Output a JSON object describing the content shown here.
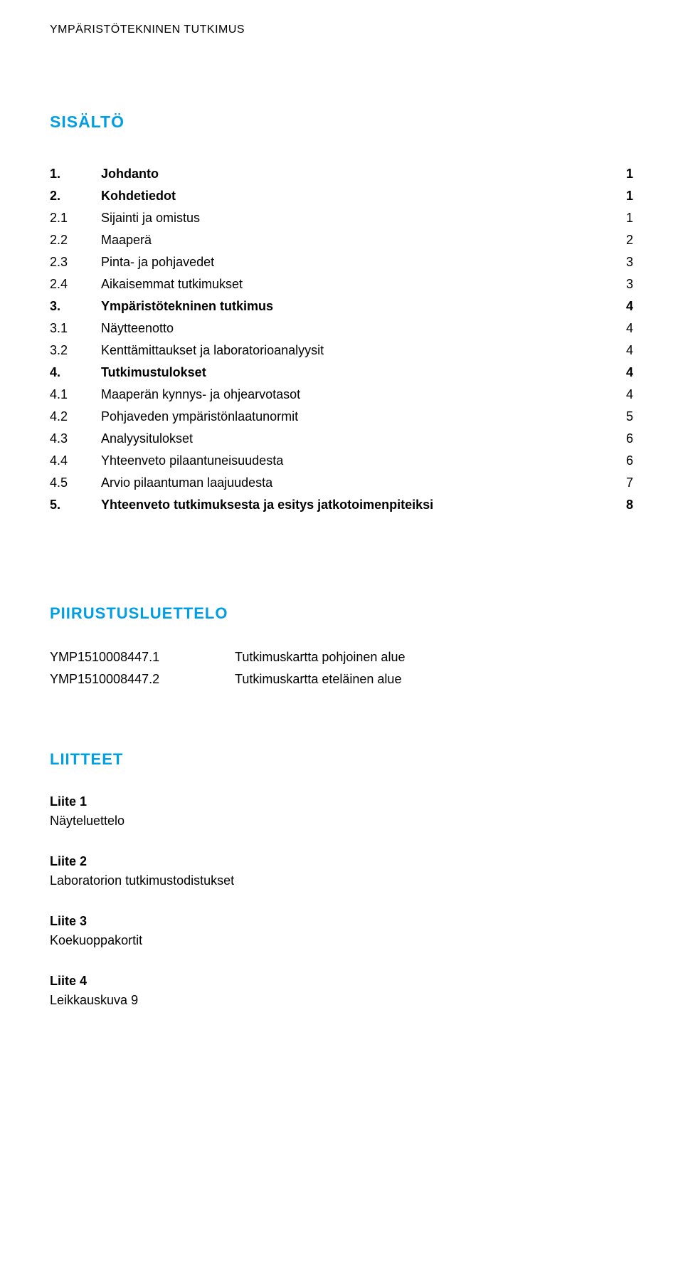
{
  "header": "YMPÄRISTÖTEKNINEN TUTKIMUS",
  "sections": {
    "sisalto_title": "SISÄLTÖ",
    "piirustus_title": "PIIRUSTUSLUETTELO",
    "liitteet_title": "LIITTEET"
  },
  "toc": [
    {
      "num": "1.",
      "title": "Johdanto",
      "page": "1",
      "bold": true
    },
    {
      "num": "2.",
      "title": "Kohdetiedot",
      "page": "1",
      "bold": true
    },
    {
      "num": "2.1",
      "title": "Sijainti ja omistus",
      "page": "1",
      "bold": false
    },
    {
      "num": "2.2",
      "title": "Maaperä",
      "page": "2",
      "bold": false
    },
    {
      "num": "2.3",
      "title": "Pinta- ja pohjavedet",
      "page": "3",
      "bold": false
    },
    {
      "num": "2.4",
      "title": "Aikaisemmat tutkimukset",
      "page": "3",
      "bold": false
    },
    {
      "num": "3.",
      "title": "Ympäristötekninen tutkimus",
      "page": "4",
      "bold": true
    },
    {
      "num": "3.1",
      "title": "Näytteenotto",
      "page": "4",
      "bold": false
    },
    {
      "num": "3.2",
      "title": "Kenttämittaukset ja laboratorioanalyysit",
      "page": "4",
      "bold": false
    },
    {
      "num": "4.",
      "title": "Tutkimustulokset",
      "page": "4",
      "bold": true
    },
    {
      "num": "4.1",
      "title": "Maaperän kynnys- ja ohjearvotasot",
      "page": "4",
      "bold": false
    },
    {
      "num": "4.2",
      "title": "Pohjaveden ympäristönlaatunormit",
      "page": "5",
      "bold": false
    },
    {
      "num": "4.3",
      "title": "Analyysitulokset",
      "page": "6",
      "bold": false
    },
    {
      "num": "4.4",
      "title": "Yhteenveto pilaantuneisuudesta",
      "page": "6",
      "bold": false
    },
    {
      "num": "4.5",
      "title": "Arvio pilaantuman laajuudesta",
      "page": "7",
      "bold": false
    },
    {
      "num": "5.",
      "title": "Yhteenveto tutkimuksesta ja esitys jatkotoimenpiteiksi",
      "page": "8",
      "bold": true
    }
  ],
  "drawings": [
    {
      "code": "YMP1510008447.1",
      "desc": "Tutkimuskartta pohjoinen alue"
    },
    {
      "code": "YMP1510008447.2",
      "desc": "Tutkimuskartta eteläinen alue"
    }
  ],
  "liitteet": [
    {
      "title": "Liite 1",
      "desc": "Näyteluettelo"
    },
    {
      "title": "Liite 2",
      "desc": "Laboratorion tutkimustodistukset"
    },
    {
      "title": "Liite 3",
      "desc": "Koekuoppakortit"
    },
    {
      "title": "Liite 4",
      "desc": "Leikkauskuva 9"
    }
  ],
  "colors": {
    "blue": "#009fe3",
    "text": "#000000",
    "background": "#ffffff"
  }
}
